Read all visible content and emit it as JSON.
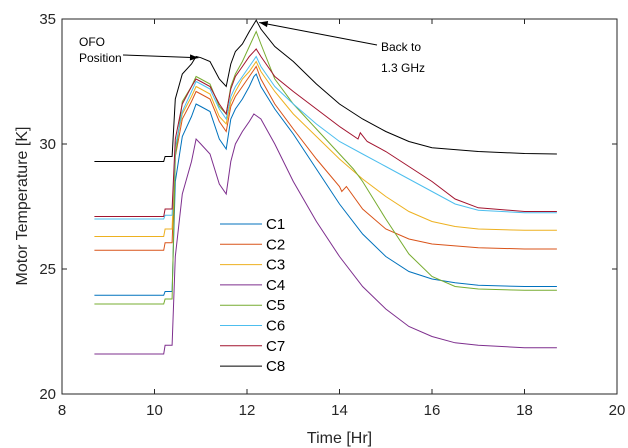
{
  "chart_data": {
    "type": "line",
    "title": "",
    "xlabel": "Time [Hr]",
    "ylabel": "Motor Temperature [K]",
    "xlim": [
      8,
      20
    ],
    "ylim": [
      20,
      35
    ],
    "xticks": [
      8,
      10,
      12,
      14,
      16,
      18,
      20
    ],
    "yticks": [
      20,
      25,
      30,
      35
    ],
    "x_tick_labels": [
      "8",
      "10",
      "12",
      "14",
      "16",
      "18",
      "20"
    ],
    "y_tick_labels": [
      "20",
      "25",
      "30",
      "35"
    ],
    "grid": false,
    "legend_position": "center-left",
    "annotations": [
      {
        "text": [
          "OFO",
          "Position"
        ],
        "points_to": [
          10.95,
          33.45
        ]
      },
      {
        "text": [
          "Back to",
          "1.3 GHz"
        ],
        "points_to": [
          12.2,
          34.9
        ]
      }
    ],
    "series": [
      {
        "name": "C1",
        "color": "#0072BD",
        "points": [
          [
            8.7,
            23.95
          ],
          [
            10.2,
            23.95
          ],
          [
            10.23,
            24.1
          ],
          [
            10.38,
            24.1
          ],
          [
            10.45,
            28.5
          ],
          [
            10.6,
            30.3
          ],
          [
            10.8,
            31.1
          ],
          [
            10.9,
            31.6
          ],
          [
            11.0,
            31.5
          ],
          [
            11.2,
            31.3
          ],
          [
            11.4,
            30.2
          ],
          [
            11.55,
            29.8
          ],
          [
            11.65,
            31.0
          ],
          [
            11.75,
            31.4
          ],
          [
            11.9,
            31.8
          ],
          [
            12.05,
            32.3
          ],
          [
            12.15,
            32.7
          ],
          [
            12.2,
            32.8
          ],
          [
            12.3,
            32.3
          ],
          [
            12.6,
            31.4
          ],
          [
            13.0,
            30.4
          ],
          [
            13.5,
            29.0
          ],
          [
            14.0,
            27.6
          ],
          [
            14.5,
            26.4
          ],
          [
            15.0,
            25.5
          ],
          [
            15.5,
            24.9
          ],
          [
            16.0,
            24.6
          ],
          [
            16.5,
            24.45
          ],
          [
            17.0,
            24.35
          ],
          [
            18.0,
            24.3
          ],
          [
            18.7,
            24.3
          ]
        ]
      },
      {
        "name": "C2",
        "color": "#D95319",
        "points": [
          [
            8.7,
            25.75
          ],
          [
            10.2,
            25.75
          ],
          [
            10.23,
            26.05
          ],
          [
            10.38,
            26.05
          ],
          [
            10.45,
            29.5
          ],
          [
            10.6,
            31.0
          ],
          [
            10.8,
            31.7
          ],
          [
            10.9,
            32.1
          ],
          [
            11.0,
            32.0
          ],
          [
            11.2,
            31.8
          ],
          [
            11.4,
            30.9
          ],
          [
            11.55,
            30.5
          ],
          [
            11.65,
            31.5
          ],
          [
            11.75,
            31.9
          ],
          [
            11.9,
            32.3
          ],
          [
            12.05,
            32.7
          ],
          [
            12.2,
            33.1
          ],
          [
            12.3,
            32.6
          ],
          [
            12.6,
            31.6
          ],
          [
            13.0,
            30.6
          ],
          [
            13.5,
            29.4
          ],
          [
            14.0,
            28.3
          ],
          [
            14.05,
            28.1
          ],
          [
            14.15,
            28.3
          ],
          [
            14.5,
            27.4
          ],
          [
            15.0,
            26.6
          ],
          [
            15.5,
            26.2
          ],
          [
            16.0,
            26.0
          ],
          [
            17.0,
            25.85
          ],
          [
            18.0,
            25.8
          ],
          [
            18.7,
            25.8
          ]
        ]
      },
      {
        "name": "C3",
        "color": "#EDB120",
        "points": [
          [
            8.7,
            26.3
          ],
          [
            10.2,
            26.3
          ],
          [
            10.23,
            26.6
          ],
          [
            10.38,
            26.6
          ],
          [
            10.45,
            29.9
          ],
          [
            10.6,
            31.2
          ],
          [
            10.8,
            31.9
          ],
          [
            10.9,
            32.3
          ],
          [
            11.0,
            32.2
          ],
          [
            11.2,
            32.0
          ],
          [
            11.4,
            31.1
          ],
          [
            11.55,
            30.8
          ],
          [
            11.65,
            31.7
          ],
          [
            11.75,
            32.1
          ],
          [
            11.9,
            32.6
          ],
          [
            12.05,
            32.9
          ],
          [
            12.2,
            33.3
          ],
          [
            12.3,
            32.9
          ],
          [
            12.6,
            32.1
          ],
          [
            13.0,
            31.2
          ],
          [
            13.5,
            30.3
          ],
          [
            14.0,
            29.4
          ],
          [
            14.5,
            28.6
          ],
          [
            15.0,
            27.9
          ],
          [
            15.5,
            27.3
          ],
          [
            16.0,
            26.9
          ],
          [
            16.5,
            26.7
          ],
          [
            17.0,
            26.6
          ],
          [
            18.0,
            26.55
          ],
          [
            18.7,
            26.55
          ]
        ]
      },
      {
        "name": "C4",
        "color": "#7E2F8E",
        "points": [
          [
            8.7,
            21.6
          ],
          [
            10.2,
            21.6
          ],
          [
            10.23,
            21.95
          ],
          [
            10.38,
            21.95
          ],
          [
            10.45,
            25.5
          ],
          [
            10.6,
            28.0
          ],
          [
            10.8,
            29.3
          ],
          [
            10.9,
            30.2
          ],
          [
            11.0,
            30.0
          ],
          [
            11.2,
            29.6
          ],
          [
            11.4,
            28.4
          ],
          [
            11.55,
            28.0
          ],
          [
            11.65,
            29.3
          ],
          [
            11.75,
            30.0
          ],
          [
            11.9,
            30.5
          ],
          [
            12.05,
            30.9
          ],
          [
            12.15,
            31.2
          ],
          [
            12.3,
            31.0
          ],
          [
            12.6,
            30.0
          ],
          [
            13.0,
            28.5
          ],
          [
            13.5,
            26.9
          ],
          [
            14.0,
            25.5
          ],
          [
            14.5,
            24.3
          ],
          [
            15.0,
            23.4
          ],
          [
            15.5,
            22.7
          ],
          [
            16.0,
            22.3
          ],
          [
            16.5,
            22.05
          ],
          [
            17.0,
            21.95
          ],
          [
            18.0,
            21.85
          ],
          [
            18.7,
            21.85
          ]
        ]
      },
      {
        "name": "C5",
        "color": "#77AC30",
        "points": [
          [
            8.7,
            23.6
          ],
          [
            10.2,
            23.6
          ],
          [
            10.23,
            23.8
          ],
          [
            10.38,
            23.8
          ],
          [
            10.45,
            29.5
          ],
          [
            10.6,
            31.7
          ],
          [
            10.8,
            32.3
          ],
          [
            10.9,
            32.7
          ],
          [
            11.0,
            32.6
          ],
          [
            11.2,
            32.4
          ],
          [
            11.4,
            31.5
          ],
          [
            11.55,
            31.2
          ],
          [
            11.65,
            32.3
          ],
          [
            11.75,
            32.8
          ],
          [
            11.9,
            33.3
          ],
          [
            12.05,
            33.9
          ],
          [
            12.2,
            34.5
          ],
          [
            12.3,
            34.0
          ],
          [
            12.6,
            32.6
          ],
          [
            13.0,
            31.6
          ],
          [
            13.5,
            30.6
          ],
          [
            14.0,
            29.6
          ],
          [
            14.3,
            29.0
          ],
          [
            14.5,
            28.5
          ],
          [
            15.0,
            27.0
          ],
          [
            15.5,
            25.6
          ],
          [
            16.0,
            24.7
          ],
          [
            16.5,
            24.3
          ],
          [
            17.0,
            24.2
          ],
          [
            18.0,
            24.15
          ],
          [
            18.7,
            24.15
          ]
        ]
      },
      {
        "name": "C6",
        "color": "#4DBEEE",
        "points": [
          [
            8.7,
            27.0
          ],
          [
            10.2,
            27.0
          ],
          [
            10.23,
            27.15
          ],
          [
            10.38,
            27.15
          ],
          [
            10.45,
            29.9
          ],
          [
            10.6,
            31.3
          ],
          [
            10.8,
            32.1
          ],
          [
            10.9,
            32.5
          ],
          [
            11.0,
            32.4
          ],
          [
            11.2,
            32.2
          ],
          [
            11.4,
            31.4
          ],
          [
            11.55,
            31.0
          ],
          [
            11.65,
            31.9
          ],
          [
            11.75,
            32.3
          ],
          [
            11.9,
            32.7
          ],
          [
            12.05,
            33.1
          ],
          [
            12.2,
            33.5
          ],
          [
            12.3,
            33.1
          ],
          [
            12.6,
            32.3
          ],
          [
            13.0,
            31.6
          ],
          [
            13.5,
            30.8
          ],
          [
            14.0,
            30.1
          ],
          [
            14.5,
            29.6
          ],
          [
            15.0,
            29.1
          ],
          [
            15.5,
            28.6
          ],
          [
            16.0,
            28.1
          ],
          [
            16.5,
            27.6
          ],
          [
            17.0,
            27.35
          ],
          [
            18.0,
            27.25
          ],
          [
            18.7,
            27.25
          ]
        ]
      },
      {
        "name": "C7",
        "color": "#A2142F",
        "points": [
          [
            8.7,
            27.1
          ],
          [
            10.2,
            27.1
          ],
          [
            10.23,
            27.4
          ],
          [
            10.38,
            27.4
          ],
          [
            10.45,
            30.2
          ],
          [
            10.6,
            31.6
          ],
          [
            10.8,
            32.3
          ],
          [
            10.9,
            32.6
          ],
          [
            11.0,
            32.5
          ],
          [
            11.2,
            32.3
          ],
          [
            11.4,
            31.6
          ],
          [
            11.55,
            31.2
          ],
          [
            11.65,
            32.2
          ],
          [
            11.75,
            32.7
          ],
          [
            11.9,
            33.1
          ],
          [
            12.05,
            33.5
          ],
          [
            12.2,
            33.8
          ],
          [
            12.3,
            33.5
          ],
          [
            12.6,
            32.7
          ],
          [
            13.0,
            32.1
          ],
          [
            13.5,
            31.4
          ],
          [
            14.0,
            30.7
          ],
          [
            14.4,
            30.2
          ],
          [
            14.45,
            30.45
          ],
          [
            14.6,
            30.1
          ],
          [
            15.0,
            29.7
          ],
          [
            15.5,
            29.1
          ],
          [
            16.0,
            28.5
          ],
          [
            16.5,
            27.8
          ],
          [
            17.0,
            27.45
          ],
          [
            18.0,
            27.3
          ],
          [
            18.7,
            27.3
          ]
        ]
      },
      {
        "name": "C8",
        "color": "#000000",
        "points": [
          [
            8.7,
            29.3
          ],
          [
            10.2,
            29.3
          ],
          [
            10.23,
            29.5
          ],
          [
            10.38,
            29.5
          ],
          [
            10.45,
            31.8
          ],
          [
            10.6,
            32.8
          ],
          [
            10.8,
            33.2
          ],
          [
            10.9,
            33.5
          ],
          [
            11.0,
            33.45
          ],
          [
            11.2,
            33.3
          ],
          [
            11.4,
            32.6
          ],
          [
            11.55,
            32.3
          ],
          [
            11.65,
            33.2
          ],
          [
            11.75,
            33.7
          ],
          [
            11.9,
            34.0
          ],
          [
            12.05,
            34.5
          ],
          [
            12.2,
            34.95
          ],
          [
            12.3,
            34.6
          ],
          [
            12.6,
            33.9
          ],
          [
            13.0,
            33.3
          ],
          [
            13.5,
            32.4
          ],
          [
            14.0,
            31.6
          ],
          [
            14.5,
            31.0
          ],
          [
            15.0,
            30.5
          ],
          [
            15.5,
            30.1
          ],
          [
            16.0,
            29.85
          ],
          [
            17.0,
            29.7
          ],
          [
            18.0,
            29.62
          ],
          [
            18.7,
            29.6
          ]
        ]
      }
    ]
  }
}
